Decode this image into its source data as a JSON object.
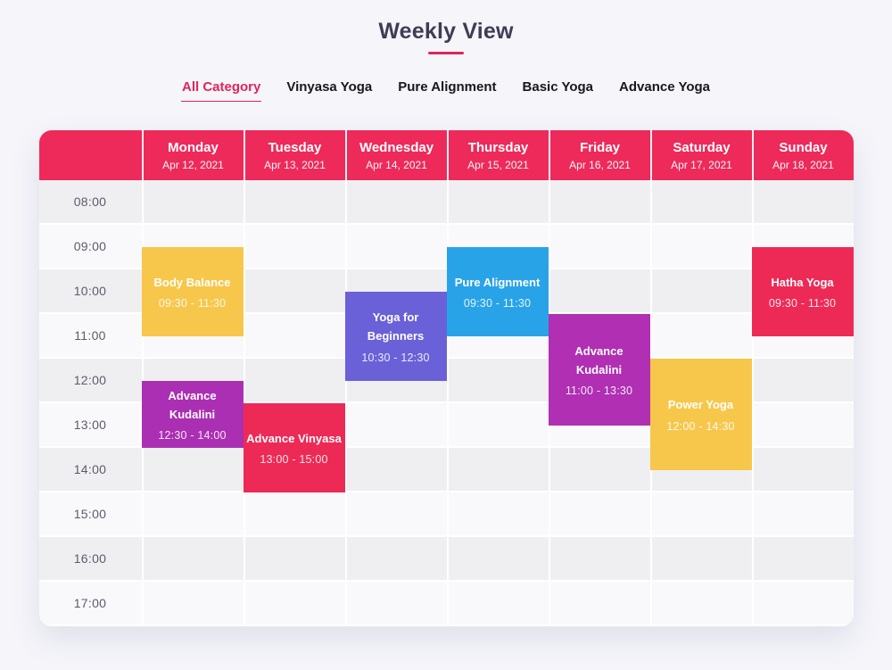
{
  "page": {
    "title": "Weekly View",
    "accent": "#e0255a",
    "background": "#f5f5fa"
  },
  "tabs": [
    {
      "label": "All Category",
      "active": true
    },
    {
      "label": "Vinyasa Yoga",
      "active": false
    },
    {
      "label": "Pure Alignment",
      "active": false
    },
    {
      "label": "Basic Yoga",
      "active": false
    },
    {
      "label": "Advance Yoga",
      "active": false
    }
  ],
  "calendar": {
    "header_color": "#ed2a5a",
    "days": [
      {
        "name": "Monday",
        "date": "Apr 12, 2021"
      },
      {
        "name": "Tuesday",
        "date": "Apr 13, 2021"
      },
      {
        "name": "Wednesday",
        "date": "Apr 14, 2021"
      },
      {
        "name": "Thursday",
        "date": "Apr 15, 2021"
      },
      {
        "name": "Friday",
        "date": "Apr 16, 2021"
      },
      {
        "name": "Saturday",
        "date": "Apr 17, 2021"
      },
      {
        "name": "Sunday",
        "date": "Apr 18, 2021"
      }
    ],
    "times": [
      "08:00",
      "09:00",
      "10:00",
      "11:00",
      "12:00",
      "13:00",
      "14:00",
      "15:00",
      "16:00",
      "17:00"
    ],
    "events": [
      {
        "title": "Body Balance",
        "time": "09:30 - 11:30",
        "day": 0,
        "start": 9.5,
        "end": 11.5,
        "color": "#f7c74b"
      },
      {
        "title": "Advance\nKudalini",
        "time": "12:30 - 14:00",
        "day": 0,
        "start": 12.5,
        "end": 14,
        "color": "#ab2fb2"
      },
      {
        "title": "Advance Vinyasa",
        "time": "13:00 - 15:00",
        "day": 1,
        "start": 13,
        "end": 15,
        "color": "#ed2a56"
      },
      {
        "title": "Yoga for\nBeginners",
        "time": "10:30 - 12:30",
        "day": 2,
        "start": 10.5,
        "end": 12.5,
        "color": "#6a61d8"
      },
      {
        "title": "Pure Alignment",
        "time": "09:30 - 11:30",
        "day": 3,
        "start": 9.5,
        "end": 11.5,
        "color": "#29a3e8"
      },
      {
        "title": "Advance\nKudalini",
        "time": "11:00 - 13:30",
        "day": 4,
        "start": 11,
        "end": 13.5,
        "color": "#b02fb3"
      },
      {
        "title": "Power Yoga",
        "time": "12:00 - 14:30",
        "day": 5,
        "start": 12,
        "end": 14.5,
        "color": "#f7c74b"
      },
      {
        "title": "Hatha Yoga",
        "time": "09:30 - 11:30",
        "day": 6,
        "start": 9.5,
        "end": 11.5,
        "color": "#ed2a56"
      }
    ]
  }
}
